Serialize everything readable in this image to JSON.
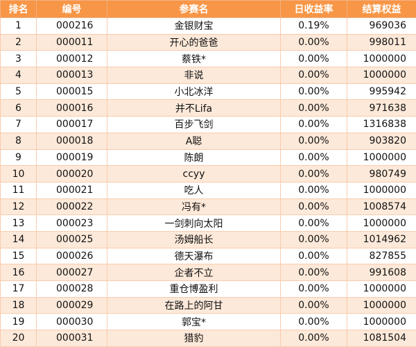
{
  "headers": {
    "rank": "排名",
    "code": "编号",
    "name": "参赛名",
    "daily_return": "日收益率",
    "equity": "结算权益"
  },
  "rows": [
    {
      "rank": "1",
      "code": "000216",
      "name": "金银财宝",
      "daily_return": "0.19%",
      "equity": "969036"
    },
    {
      "rank": "2",
      "code": "000011",
      "name": "开心的爸爸",
      "daily_return": "0.00%",
      "equity": "998011"
    },
    {
      "rank": "3",
      "code": "000012",
      "name": "蔡铁*",
      "daily_return": "0.00%",
      "equity": "1000000"
    },
    {
      "rank": "4",
      "code": "000013",
      "name": "非说",
      "daily_return": "0.00%",
      "equity": "1000000"
    },
    {
      "rank": "5",
      "code": "000015",
      "name": "小北冰洋",
      "daily_return": "0.00%",
      "equity": "995942"
    },
    {
      "rank": "6",
      "code": "000016",
      "name": "并不Lifa",
      "daily_return": "0.00%",
      "equity": "971638"
    },
    {
      "rank": "7",
      "code": "000017",
      "name": "百步飞剑",
      "daily_return": "0.00%",
      "equity": "1316838"
    },
    {
      "rank": "8",
      "code": "000018",
      "name": "A聪",
      "daily_return": "0.00%",
      "equity": "903820"
    },
    {
      "rank": "9",
      "code": "000019",
      "name": "陈朗",
      "daily_return": "0.00%",
      "equity": "1000000"
    },
    {
      "rank": "10",
      "code": "000020",
      "name": "ccyy",
      "daily_return": "0.00%",
      "equity": "980749"
    },
    {
      "rank": "11",
      "code": "000021",
      "name": "吃人",
      "daily_return": "0.00%",
      "equity": "1000000"
    },
    {
      "rank": "12",
      "code": "000022",
      "name": "冯有*",
      "daily_return": "0.00%",
      "equity": "1008574"
    },
    {
      "rank": "13",
      "code": "000023",
      "name": "一剑刺向太阳",
      "daily_return": "0.00%",
      "equity": "1000000"
    },
    {
      "rank": "14",
      "code": "000025",
      "name": "汤姆船长",
      "daily_return": "0.00%",
      "equity": "1014962"
    },
    {
      "rank": "15",
      "code": "000026",
      "name": "德天瀑布",
      "daily_return": "0.00%",
      "equity": "827855"
    },
    {
      "rank": "16",
      "code": "000027",
      "name": "企者不立",
      "daily_return": "0.00%",
      "equity": "991608"
    },
    {
      "rank": "17",
      "code": "000028",
      "name": "重仓博盈利",
      "daily_return": "0.00%",
      "equity": "1000000"
    },
    {
      "rank": "18",
      "code": "000029",
      "name": "在路上的阿甘",
      "daily_return": "0.00%",
      "equity": "1000000"
    },
    {
      "rank": "19",
      "code": "000030",
      "name": "郭宝*",
      "daily_return": "0.00%",
      "equity": "1000000"
    },
    {
      "rank": "20",
      "code": "000031",
      "name": "猎豹",
      "daily_return": "0.00%",
      "equity": "1081504"
    }
  ]
}
